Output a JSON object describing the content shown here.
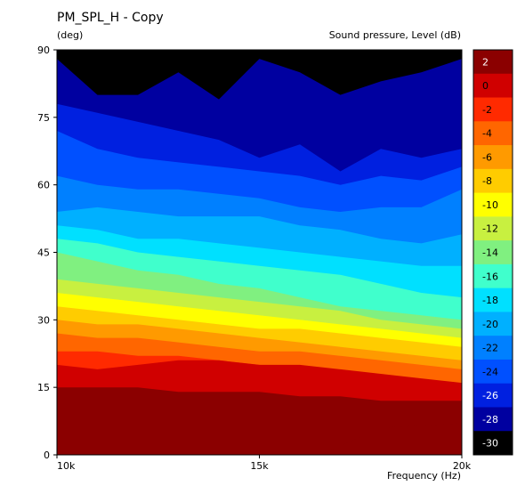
{
  "chart_data": {
    "type": "heatmap",
    "title": "PM_SPL_H - Copy",
    "ylabel": "(deg)",
    "xlabel": "Frequency  (Hz)",
    "colorbar_label": "Sound pressure, Level  (dB)",
    "x_ticks": [
      "10k",
      "15k",
      "20k"
    ],
    "x_tick_values": [
      10000,
      15000,
      20000
    ],
    "xlim": [
      10000,
      20000
    ],
    "y_ticks": [
      "0",
      "15",
      "30",
      "45",
      "60",
      "75",
      "90"
    ],
    "y_tick_values": [
      0,
      15,
      30,
      45,
      60,
      75,
      90
    ],
    "ylim": [
      0,
      90
    ],
    "levels": [
      2,
      0,
      -2,
      -4,
      -6,
      -8,
      -10,
      -12,
      -14,
      -16,
      -18,
      -20,
      -22,
      -24,
      -26,
      -28,
      -30
    ],
    "level_labels": [
      "2",
      "0",
      "-2",
      "-4",
      "-6",
      "-8",
      "-10",
      "-12",
      "-14",
      "-16",
      "-18",
      "-20",
      "-22",
      "-24",
      "-26",
      "-28",
      "-30"
    ],
    "level_colors": [
      "#8b0000",
      "#d00000",
      "#ff2a00",
      "#ff6600",
      "#ff9a00",
      "#ffcc00",
      "#ffff00",
      "#c8f040",
      "#80f080",
      "#40ffcc",
      "#00e0ff",
      "#00b0ff",
      "#0080ff",
      "#0050ff",
      "#0020e0",
      "#0000a0",
      "#000000"
    ],
    "contours": [
      {
        "level": -30,
        "y": [
          88,
          88,
          88,
          88,
          88,
          88,
          88,
          88,
          88,
          88,
          88
        ]
      },
      {
        "level": -28,
        "y": [
          88,
          80,
          80,
          85,
          79,
          88,
          85,
          80,
          83,
          85,
          88
        ]
      },
      {
        "level": -26,
        "y": [
          78,
          76,
          74,
          72,
          70,
          66,
          69,
          63,
          68,
          66,
          68
        ]
      },
      {
        "level": -24,
        "y": [
          72,
          68,
          66,
          65,
          64,
          63,
          62,
          60,
          62,
          61,
          64
        ]
      },
      {
        "level": -22,
        "y": [
          62,
          60,
          59,
          59,
          58,
          57,
          55,
          54,
          55,
          55,
          59
        ]
      },
      {
        "level": -20,
        "y": [
          54,
          55,
          54,
          53,
          53,
          53,
          51,
          50,
          48,
          47,
          49
        ]
      },
      {
        "level": -18,
        "y": [
          51,
          50,
          48,
          48,
          47,
          46,
          45,
          44,
          43,
          42,
          42
        ]
      },
      {
        "level": -16,
        "y": [
          48,
          47,
          45,
          44,
          43,
          42,
          41,
          40,
          38,
          36,
          35
        ]
      },
      {
        "level": -14,
        "y": [
          45,
          43,
          41,
          40,
          38,
          37,
          35,
          33,
          32,
          31,
          30
        ]
      },
      {
        "level": -12,
        "y": [
          39,
          38,
          37,
          36,
          35,
          34,
          33,
          32,
          30,
          29,
          28
        ]
      },
      {
        "level": -10,
        "y": [
          36,
          35,
          34,
          33,
          32,
          31,
          30,
          29,
          28,
          27,
          26
        ]
      },
      {
        "level": -8,
        "y": [
          33,
          32,
          31,
          30,
          29,
          28,
          28,
          27,
          26,
          25,
          24
        ]
      },
      {
        "level": -6,
        "y": [
          30,
          29,
          29,
          28,
          27,
          26,
          25,
          24,
          23,
          22,
          21
        ]
      },
      {
        "level": -4,
        "y": [
          27,
          26,
          26,
          25,
          24,
          23,
          23,
          22,
          21,
          20,
          19
        ]
      },
      {
        "level": -2,
        "y": [
          23,
          23,
          22,
          22,
          21,
          20,
          19,
          18,
          17,
          16,
          15
        ]
      },
      {
        "level": 0,
        "y": [
          20,
          19,
          20,
          21,
          21,
          20,
          20,
          19,
          18,
          17,
          16
        ]
      },
      {
        "level": 2,
        "y": [
          15,
          15,
          15,
          14,
          14,
          14,
          13,
          13,
          12,
          12,
          12
        ]
      }
    ],
    "hotspot": {
      "level": 2,
      "x": [
        16500,
        18000,
        20000
      ],
      "y": [
        0,
        6,
        7
      ]
    },
    "x_samples": [
      10000,
      11000,
      12000,
      13000,
      14000,
      15000,
      16000,
      17000,
      18000,
      19000,
      20000
    ]
  }
}
